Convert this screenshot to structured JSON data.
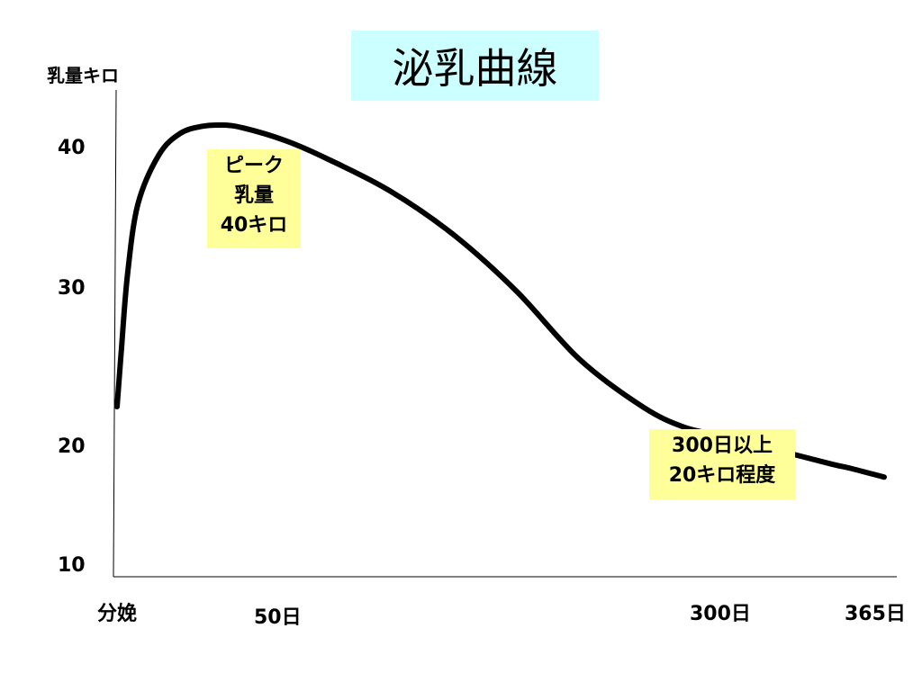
{
  "chart_data": {
    "type": "line",
    "title": "泌乳曲線",
    "ylabel": "乳量キロ",
    "xlabel": "",
    "yticks": [
      "40",
      "30",
      "20",
      "10"
    ],
    "xticks": [
      {
        "label": "分娩",
        "x": 0
      },
      {
        "label": "50日",
        "x": 50
      },
      {
        "label": "300日",
        "x": 300
      },
      {
        "label": "365日",
        "x": 365
      }
    ],
    "xlim": [
      0,
      365
    ],
    "ylim": [
      10,
      42
    ],
    "grid": false,
    "series": [
      {
        "color": "#000000",
        "x": [
          0,
          2,
          5,
          10,
          20,
          30,
          40,
          50,
          60,
          80,
          100,
          130,
          160,
          190,
          220,
          250,
          270,
          290,
          300,
          320,
          340,
          350,
          365
        ],
        "values": [
          22.5,
          26.0,
          31.0,
          36.0,
          39.5,
          41.0,
          41.5,
          41.6,
          41.4,
          40.5,
          39.2,
          36.9,
          33.8,
          29.8,
          25.5,
          22.5,
          21.2,
          20.6,
          20.2,
          19.4,
          18.5,
          18.1,
          17.4
        ]
      }
    ],
    "annotations": [
      {
        "lines": [
          "ピーク",
          "乳量",
          "40キロ"
        ],
        "background": "#ffff99"
      },
      {
        "lines": [
          "300日以上",
          "20キロ程度"
        ],
        "background": "#ffff99"
      }
    ]
  }
}
